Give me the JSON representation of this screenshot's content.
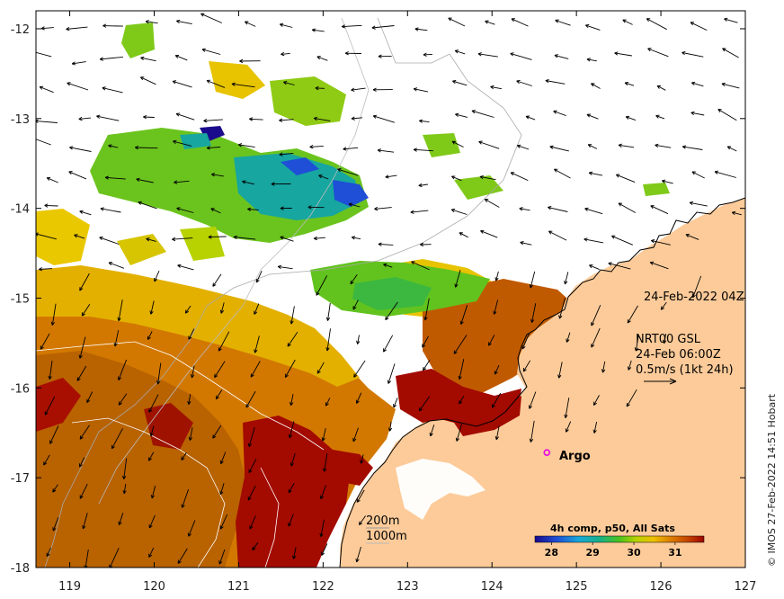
{
  "map": {
    "timestamp": "24-Feb-2022 04Z",
    "current_source": {
      "line1": "NRT00 GSL",
      "line2": "24-Feb 06:00Z",
      "line3": "0.5m/s (1kt 24h)"
    },
    "marker": {
      "label": "Argo",
      "lon": 124.65,
      "lat": -16.72
    },
    "contours": {
      "c200": "200m",
      "c1000": "1000m"
    },
    "colorbar": {
      "title": "4h comp, p50, All Sats",
      "ticks": [
        "28",
        "29",
        "30",
        "31"
      ],
      "tick_values": [
        28,
        29,
        30,
        31
      ],
      "range": [
        27.6,
        31.7
      ]
    },
    "axes": {
      "lon_range": [
        118.6,
        127
      ],
      "lat_range": [
        -18,
        -11.8
      ],
      "x_ticks": [
        {
          "v": 119,
          "label": "119"
        },
        {
          "v": 120,
          "label": "120"
        },
        {
          "v": 121,
          "label": "121"
        },
        {
          "v": 122,
          "label": "122"
        },
        {
          "v": 123,
          "label": "123"
        },
        {
          "v": 124,
          "label": "124"
        },
        {
          "v": 125,
          "label": "125"
        },
        {
          "v": 126,
          "label": "126"
        },
        {
          "v": 127,
          "label": "127"
        }
      ],
      "y_ticks": [
        {
          "v": -12,
          "label": "-12"
        },
        {
          "v": -13,
          "label": "-13"
        },
        {
          "v": -14,
          "label": "-14"
        },
        {
          "v": -15,
          "label": "-15"
        },
        {
          "v": -16,
          "label": "-16"
        },
        {
          "v": -17,
          "label": "-17"
        },
        {
          "v": -18,
          "label": "-18"
        }
      ]
    },
    "credit": "© IMOS 27-Feb-2022 14:51 Hobart",
    "colors": {
      "land": "#fccb99",
      "sst_warm": "#a30a00",
      "sst_orange": "#d97400",
      "sst_yellow": "#e2c400",
      "sst_green": "#5ec21e",
      "sst_cyan": "#17a6a0",
      "sst_blue": "#1e4fd6",
      "marker": "#e600e6"
    }
  }
}
